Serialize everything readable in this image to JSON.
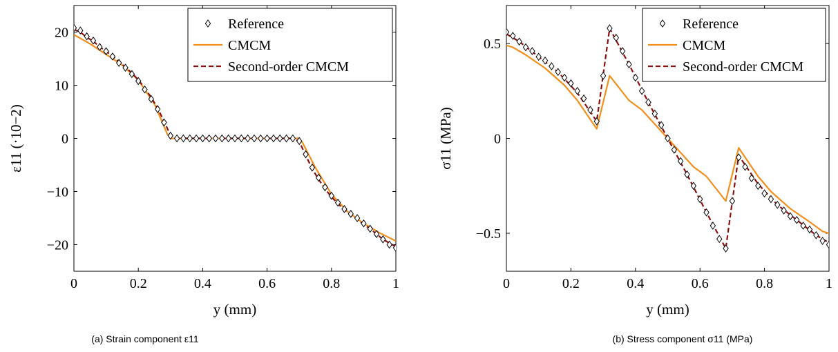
{
  "colors": {
    "reference": "#000000",
    "cmcm": "#f28e1c",
    "second_order": "#8b0f0f"
  },
  "chart_data": [
    {
      "type": "line",
      "caption": "(a) Strain component ε11",
      "xlabel": "y (mm)",
      "ylabel": "ε11 (·10−2)",
      "xlim": [
        0,
        1
      ],
      "ylim": [
        -25,
        25
      ],
      "xticks": [
        0,
        0.2,
        0.4,
        0.6,
        0.8,
        1
      ],
      "xtick_labels": [
        "0",
        "0.2",
        "0.4",
        "0.6",
        "0.8",
        "1"
      ],
      "yticks": [
        -20,
        -10,
        0,
        10,
        20
      ],
      "ytick_labels": [
        "−20",
        "−10",
        "0",
        "10",
        "20"
      ],
      "legend_position": "top-right",
      "series": [
        {
          "name": "Reference",
          "style": "markers",
          "x": [
            0,
            0.02,
            0.04,
            0.06,
            0.08,
            0.1,
            0.12,
            0.14,
            0.16,
            0.18,
            0.2,
            0.22,
            0.24,
            0.26,
            0.28,
            0.3,
            0.32,
            0.34,
            0.36,
            0.38,
            0.4,
            0.42,
            0.44,
            0.46,
            0.48,
            0.5,
            0.52,
            0.54,
            0.56,
            0.58,
            0.6,
            0.62,
            0.64,
            0.66,
            0.68,
            0.7,
            0.72,
            0.74,
            0.76,
            0.78,
            0.8,
            0.82,
            0.84,
            0.86,
            0.88,
            0.9,
            0.92,
            0.94,
            0.96,
            0.98,
            1
          ],
          "y": [
            20.8,
            20.3,
            19.2,
            18.4,
            17.2,
            16.4,
            15.4,
            14.2,
            13.3,
            12.1,
            10.8,
            9.2,
            7.4,
            5.5,
            3.0,
            0.5,
            0,
            0,
            0,
            0,
            0,
            0,
            0,
            0,
            0,
            0,
            0,
            0,
            0,
            0,
            0,
            0,
            0,
            0,
            0,
            -0.5,
            -3.0,
            -5.5,
            -7.4,
            -9.2,
            -10.8,
            -12.1,
            -13.3,
            -14.2,
            -15.0,
            -16.0,
            -17.0,
            -18.0,
            -19.0,
            -20.0,
            -20.6
          ]
        },
        {
          "name": "CMCM",
          "style": "solid",
          "x": [
            0,
            0.05,
            0.1,
            0.15,
            0.2,
            0.25,
            0.29,
            0.3,
            0.5,
            0.7,
            0.71,
            0.75,
            0.8,
            0.85,
            0.9,
            0.95,
            1
          ],
          "y": [
            19.5,
            17.8,
            15.8,
            13.8,
            11.0,
            6.5,
            0.8,
            0,
            0,
            0,
            -0.8,
            -5.5,
            -10.5,
            -13.8,
            -16.0,
            -17.8,
            -19.3
          ]
        },
        {
          "name": "Second-order CMCM",
          "style": "dashed",
          "x": [
            0,
            0.02,
            0.04,
            0.06,
            0.08,
            0.1,
            0.12,
            0.14,
            0.16,
            0.18,
            0.2,
            0.22,
            0.24,
            0.26,
            0.28,
            0.3,
            0.32,
            0.5,
            0.68,
            0.7,
            0.72,
            0.74,
            0.76,
            0.78,
            0.8,
            0.82,
            0.84,
            0.86,
            0.88,
            0.9,
            0.92,
            0.94,
            0.96,
            0.98,
            1
          ],
          "y": [
            20.5,
            20.0,
            19.0,
            18.3,
            17.2,
            16.4,
            15.5,
            14.4,
            13.4,
            12.3,
            11.0,
            9.5,
            7.7,
            5.7,
            3.2,
            0.6,
            0,
            0,
            0,
            -0.6,
            -3.2,
            -5.7,
            -7.7,
            -9.5,
            -11.0,
            -12.3,
            -13.4,
            -14.4,
            -15.2,
            -16.2,
            -17.0,
            -18.0,
            -19.0,
            -19.7,
            -20.4
          ]
        }
      ]
    },
    {
      "type": "line",
      "caption": "(b) Stress component σ11 (MPa)",
      "xlabel": "y (mm)",
      "ylabel": "σ11 (MPa)",
      "xlim": [
        0,
        1
      ],
      "ylim": [
        -0.7,
        0.7
      ],
      "xticks": [
        0,
        0.2,
        0.4,
        0.6,
        0.8,
        1
      ],
      "xtick_labels": [
        "0",
        "0.2",
        "0.4",
        "0.6",
        "0.8",
        "1"
      ],
      "yticks": [
        -0.5,
        0,
        0.5
      ],
      "ytick_labels": [
        "−0.5",
        "0",
        "0.5"
      ],
      "legend_position": "top-right",
      "series": [
        {
          "name": "Reference",
          "style": "markers",
          "x": [
            0,
            0.02,
            0.04,
            0.06,
            0.08,
            0.1,
            0.12,
            0.14,
            0.16,
            0.18,
            0.2,
            0.22,
            0.24,
            0.26,
            0.28,
            0.3,
            0.32,
            0.34,
            0.36,
            0.38,
            0.4,
            0.42,
            0.44,
            0.46,
            0.48,
            0.5,
            0.52,
            0.54,
            0.56,
            0.58,
            0.6,
            0.62,
            0.64,
            0.66,
            0.68,
            0.7,
            0.72,
            0.74,
            0.76,
            0.78,
            0.8,
            0.82,
            0.84,
            0.86,
            0.88,
            0.9,
            0.92,
            0.94,
            0.96,
            0.98,
            1
          ],
          "y": [
            0.56,
            0.54,
            0.51,
            0.48,
            0.46,
            0.43,
            0.41,
            0.38,
            0.35,
            0.32,
            0.29,
            0.25,
            0.21,
            0.15,
            0.09,
            0.33,
            0.58,
            0.53,
            0.46,
            0.39,
            0.32,
            0.25,
            0.19,
            0.13,
            0.07,
            0.0,
            -0.06,
            -0.12,
            -0.19,
            -0.25,
            -0.32,
            -0.39,
            -0.46,
            -0.53,
            -0.58,
            -0.33,
            -0.1,
            -0.15,
            -0.21,
            -0.25,
            -0.29,
            -0.32,
            -0.35,
            -0.38,
            -0.41,
            -0.43,
            -0.46,
            -0.48,
            -0.51,
            -0.54,
            -0.56
          ]
        },
        {
          "name": "CMCM",
          "style": "solid",
          "x": [
            0,
            0.02,
            0.06,
            0.12,
            0.18,
            0.22,
            0.28,
            0.32,
            0.38,
            0.42,
            0.5,
            0.58,
            0.62,
            0.68,
            0.72,
            0.78,
            0.82,
            0.88,
            0.94,
            0.98,
            1
          ],
          "y": [
            0.49,
            0.48,
            0.44,
            0.37,
            0.28,
            0.2,
            0.05,
            0.33,
            0.2,
            0.15,
            0.0,
            -0.15,
            -0.2,
            -0.33,
            -0.05,
            -0.2,
            -0.28,
            -0.37,
            -0.44,
            -0.49,
            -0.5
          ]
        },
        {
          "name": "Second-order CMCM",
          "style": "dashed",
          "x": [
            0,
            0.04,
            0.1,
            0.16,
            0.22,
            0.28,
            0.32,
            0.38,
            0.44,
            0.5,
            0.56,
            0.62,
            0.68,
            0.72,
            0.78,
            0.84,
            0.9,
            0.96,
            1
          ],
          "y": [
            0.55,
            0.51,
            0.43,
            0.35,
            0.24,
            0.09,
            0.58,
            0.39,
            0.19,
            0.0,
            -0.19,
            -0.39,
            -0.58,
            -0.09,
            -0.24,
            -0.35,
            -0.43,
            -0.51,
            -0.55
          ]
        }
      ]
    }
  ]
}
